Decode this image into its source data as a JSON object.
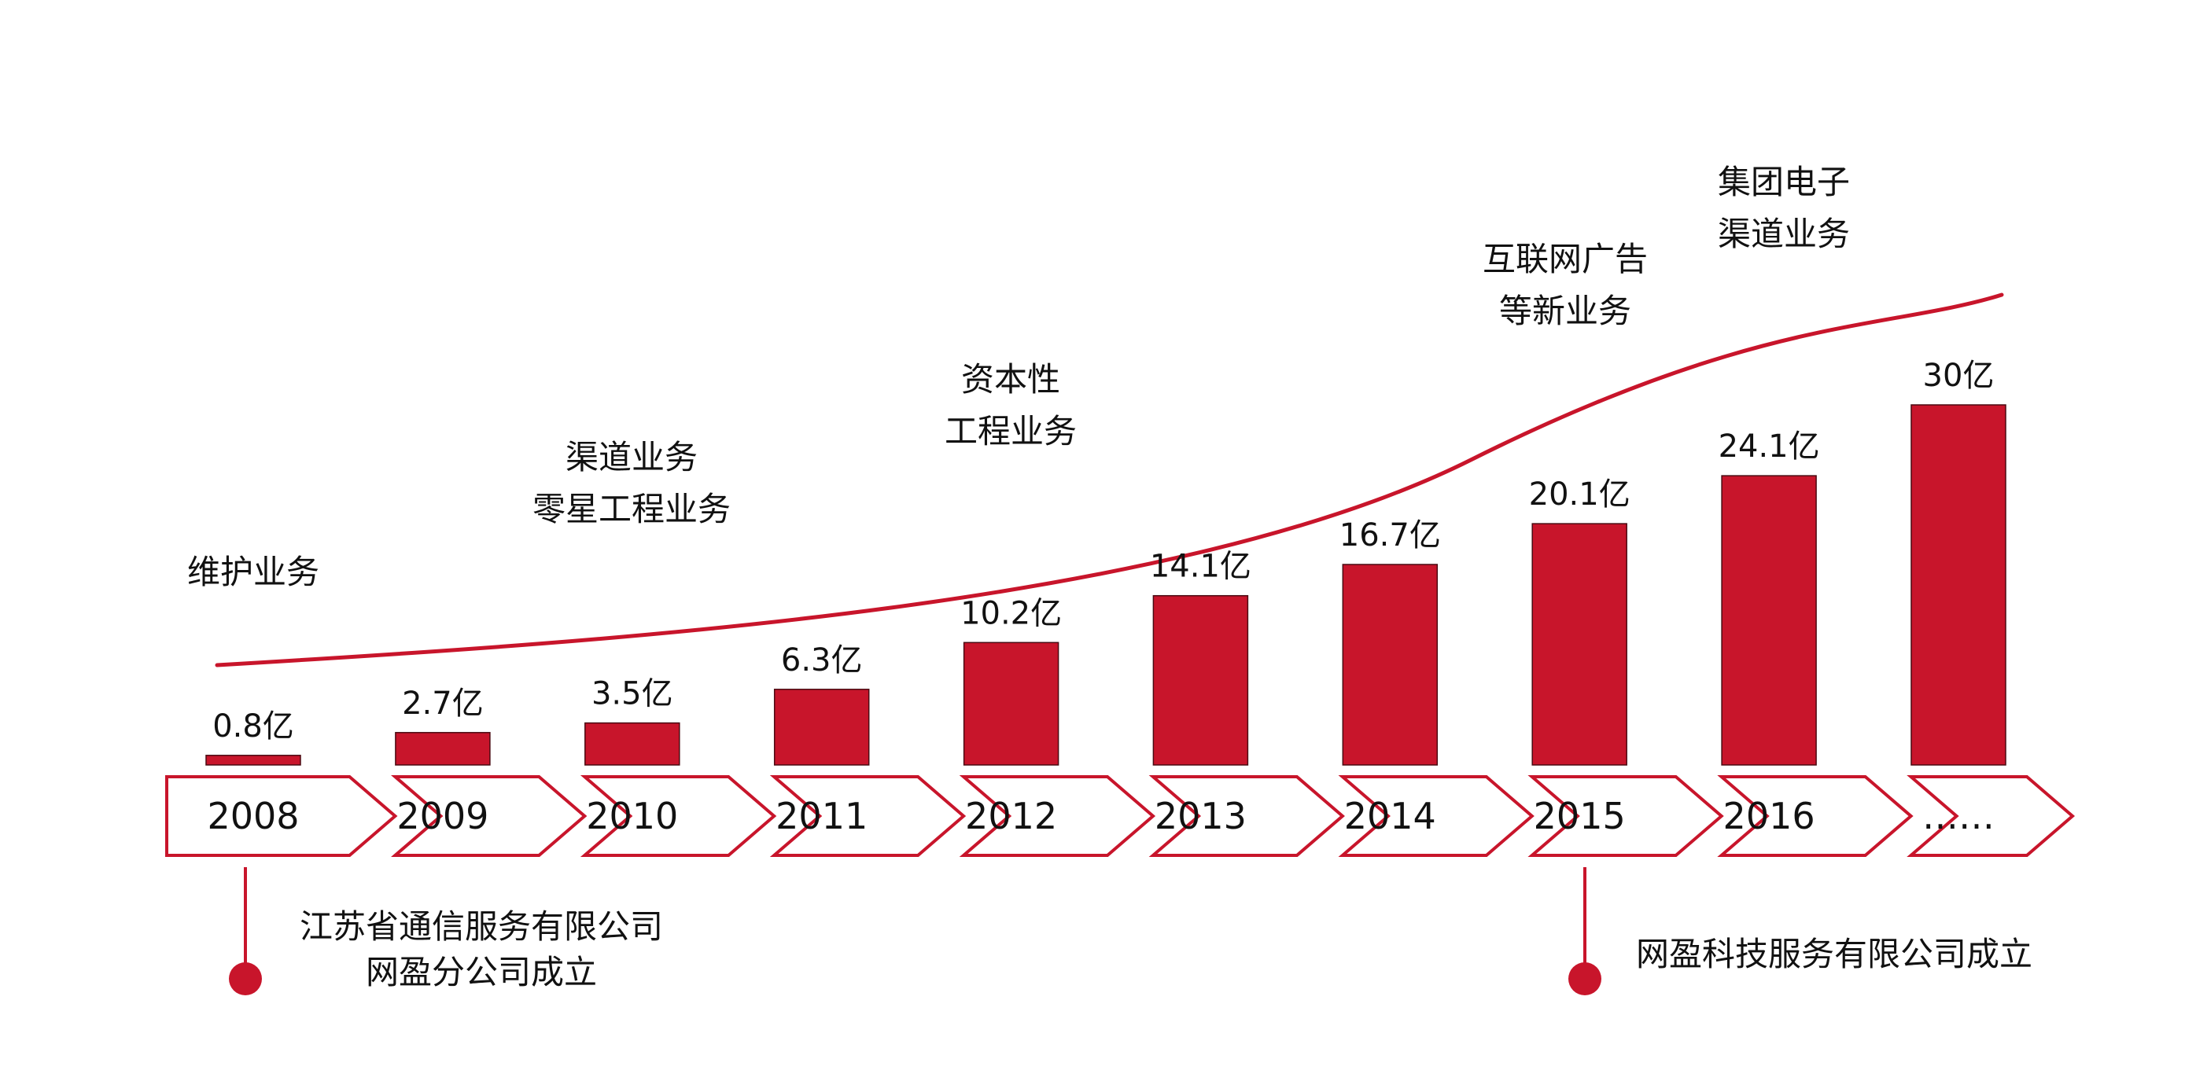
{
  "theme": {
    "accent": "#C8152B",
    "bar_stroke": "#4a0a12",
    "text": "#111111",
    "background": "#ffffff"
  },
  "chart_data": {
    "type": "bar",
    "categories": [
      "2008",
      "2009",
      "2010",
      "2011",
      "2012",
      "2013",
      "2014",
      "2015",
      "2016",
      "……"
    ],
    "values": [
      0.8,
      2.7,
      3.5,
      6.3,
      10.2,
      14.1,
      16.7,
      20.1,
      24.1,
      30
    ],
    "value_labels": [
      "0.8亿",
      "2.7亿",
      "3.5亿",
      "6.3亿",
      "10.2亿",
      "14.1亿",
      "16.7亿",
      "20.1亿",
      "24.1亿",
      "30亿"
    ],
    "unit": "亿",
    "title": "",
    "xlabel": "",
    "ylabel": "",
    "ylim": [
      0,
      30
    ],
    "grid": false,
    "legend": "none",
    "trend_line": true,
    "business_annotations": [
      {
        "category_index": 0,
        "lines": [
          "维护业务"
        ]
      },
      {
        "category_index": 2,
        "lines": [
          "渠道业务",
          "零星工程业务"
        ]
      },
      {
        "category_index": 4,
        "lines": [
          "资本性",
          "工程业务"
        ]
      },
      {
        "category_index": 7,
        "lines": [
          "互联网广告",
          "等新业务"
        ]
      },
      {
        "category_index": 8,
        "lines": [
          "集团电子",
          "渠道业务"
        ]
      }
    ],
    "milestones": [
      {
        "category_index": 0,
        "lines": [
          "江苏省通信服务有限公司",
          "网盈分公司成立"
        ]
      },
      {
        "category_index": 7,
        "lines": [
          "网盈科技服务有限公司成立"
        ]
      }
    ]
  }
}
